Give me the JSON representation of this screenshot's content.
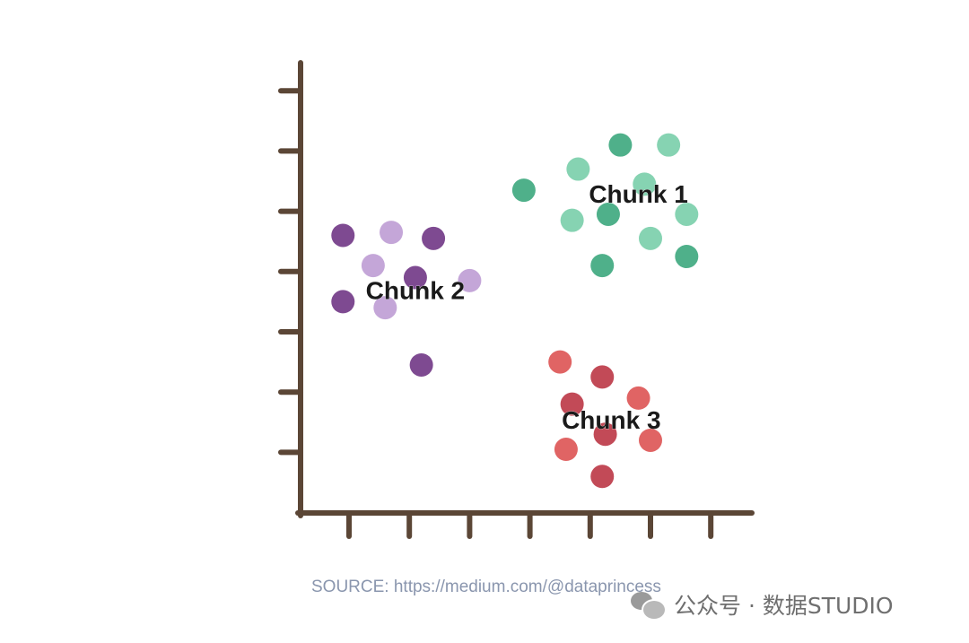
{
  "chart_data": {
    "type": "scatter",
    "title": "",
    "xlabel": "",
    "ylabel": "",
    "xlim": [
      0,
      8
    ],
    "ylim": [
      0,
      7.5
    ],
    "x_ticks": [
      1,
      2,
      3,
      4,
      5,
      6,
      7
    ],
    "y_ticks": [
      1,
      2,
      3,
      4,
      5,
      6,
      7
    ],
    "grid": false,
    "series": [
      {
        "name": "Chunk 1",
        "color": "#4fb08a",
        "color_light": "#86d3b2",
        "label_at": [
          5.8,
          5.25
        ],
        "points": [
          {
            "x": 5.5,
            "y": 6.1,
            "shade": "dark"
          },
          {
            "x": 6.3,
            "y": 6.1,
            "shade": "light"
          },
          {
            "x": 4.8,
            "y": 5.7,
            "shade": "light"
          },
          {
            "x": 5.9,
            "y": 5.45,
            "shade": "light"
          },
          {
            "x": 3.9,
            "y": 5.35,
            "shade": "dark"
          },
          {
            "x": 5.3,
            "y": 4.95,
            "shade": "dark"
          },
          {
            "x": 6.6,
            "y": 4.95,
            "shade": "light"
          },
          {
            "x": 4.7,
            "y": 4.85,
            "shade": "light"
          },
          {
            "x": 6.0,
            "y": 4.55,
            "shade": "light"
          },
          {
            "x": 6.6,
            "y": 4.25,
            "shade": "dark"
          },
          {
            "x": 5.2,
            "y": 4.1,
            "shade": "dark"
          }
        ]
      },
      {
        "name": "Chunk 2",
        "color": "#7e4a91",
        "color_light": "#c4a6d8",
        "label_at": [
          2.1,
          3.65
        ],
        "points": [
          {
            "x": 0.9,
            "y": 4.6,
            "shade": "dark"
          },
          {
            "x": 1.7,
            "y": 4.65,
            "shade": "light"
          },
          {
            "x": 2.4,
            "y": 4.55,
            "shade": "dark"
          },
          {
            "x": 1.4,
            "y": 4.1,
            "shade": "light"
          },
          {
            "x": 2.1,
            "y": 3.9,
            "shade": "dark"
          },
          {
            "x": 3.0,
            "y": 3.85,
            "shade": "light"
          },
          {
            "x": 0.9,
            "y": 3.5,
            "shade": "dark"
          },
          {
            "x": 1.6,
            "y": 3.4,
            "shade": "light"
          },
          {
            "x": 2.2,
            "y": 2.45,
            "shade": "dark"
          }
        ]
      },
      {
        "name": "Chunk 3",
        "color": "#c24a57",
        "color_light": "#e06464",
        "label_at": [
          5.35,
          1.5
        ],
        "points": [
          {
            "x": 4.5,
            "y": 2.5,
            "shade": "light"
          },
          {
            "x": 5.2,
            "y": 2.25,
            "shade": "dark"
          },
          {
            "x": 5.8,
            "y": 1.9,
            "shade": "light"
          },
          {
            "x": 4.7,
            "y": 1.8,
            "shade": "dark"
          },
          {
            "x": 5.25,
            "y": 1.3,
            "shade": "dark"
          },
          {
            "x": 6.0,
            "y": 1.2,
            "shade": "light"
          },
          {
            "x": 4.6,
            "y": 1.05,
            "shade": "light"
          },
          {
            "x": 5.2,
            "y": 0.6,
            "shade": "dark"
          }
        ]
      }
    ]
  },
  "source": "SOURCE: https://medium.com/@dataprincess",
  "watermark": {
    "icon": "wechat-icon",
    "text": "公众号 · 数据STUDIO"
  },
  "colors": {
    "axis": "#5b4636",
    "label_text": "#1a1a1a"
  }
}
